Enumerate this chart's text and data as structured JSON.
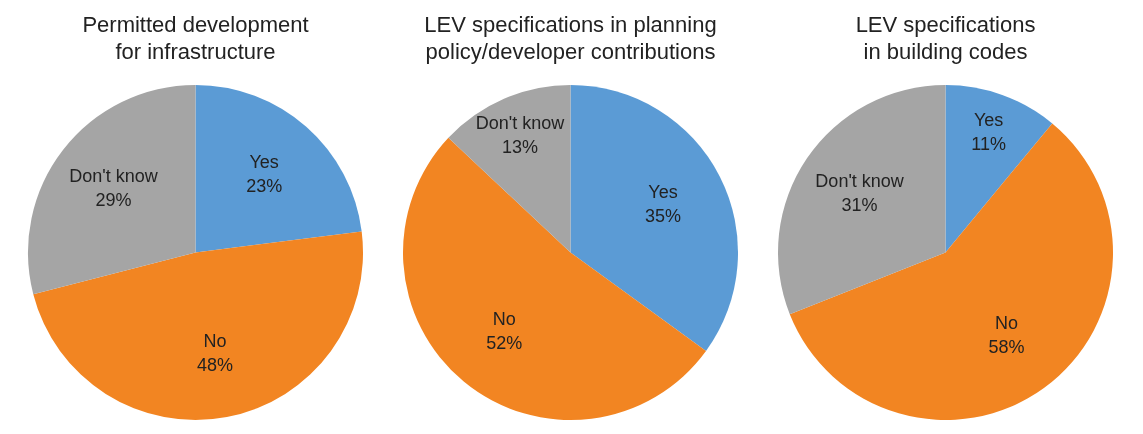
{
  "chart_data": [
    {
      "type": "pie",
      "title": "Permitted development\nfor infrastructure",
      "categories": [
        "Yes",
        "No",
        "Don't know"
      ],
      "values": [
        23,
        48,
        29
      ],
      "value_labels": [
        "23%",
        "48%",
        "29%"
      ],
      "colors": [
        "#5b9bd5",
        "#f28522",
        "#a5a5a5"
      ]
    },
    {
      "type": "pie",
      "title": "LEV specifications in planning\npolicy/developer contributions",
      "categories": [
        "Yes",
        "No",
        "Don't know"
      ],
      "values": [
        35,
        52,
        13
      ],
      "value_labels": [
        "35%",
        "52%",
        "13%"
      ],
      "colors": [
        "#5b9bd5",
        "#f28522",
        "#a5a5a5"
      ]
    },
    {
      "type": "pie",
      "title": "LEV specifications\nin building codes",
      "categories": [
        "Yes",
        "No",
        "Don't know"
      ],
      "values": [
        11,
        58,
        31
      ],
      "value_labels": [
        "11%",
        "58%",
        "31%"
      ],
      "colors": [
        "#5b9bd5",
        "#f28522",
        "#a5a5a5"
      ]
    }
  ]
}
